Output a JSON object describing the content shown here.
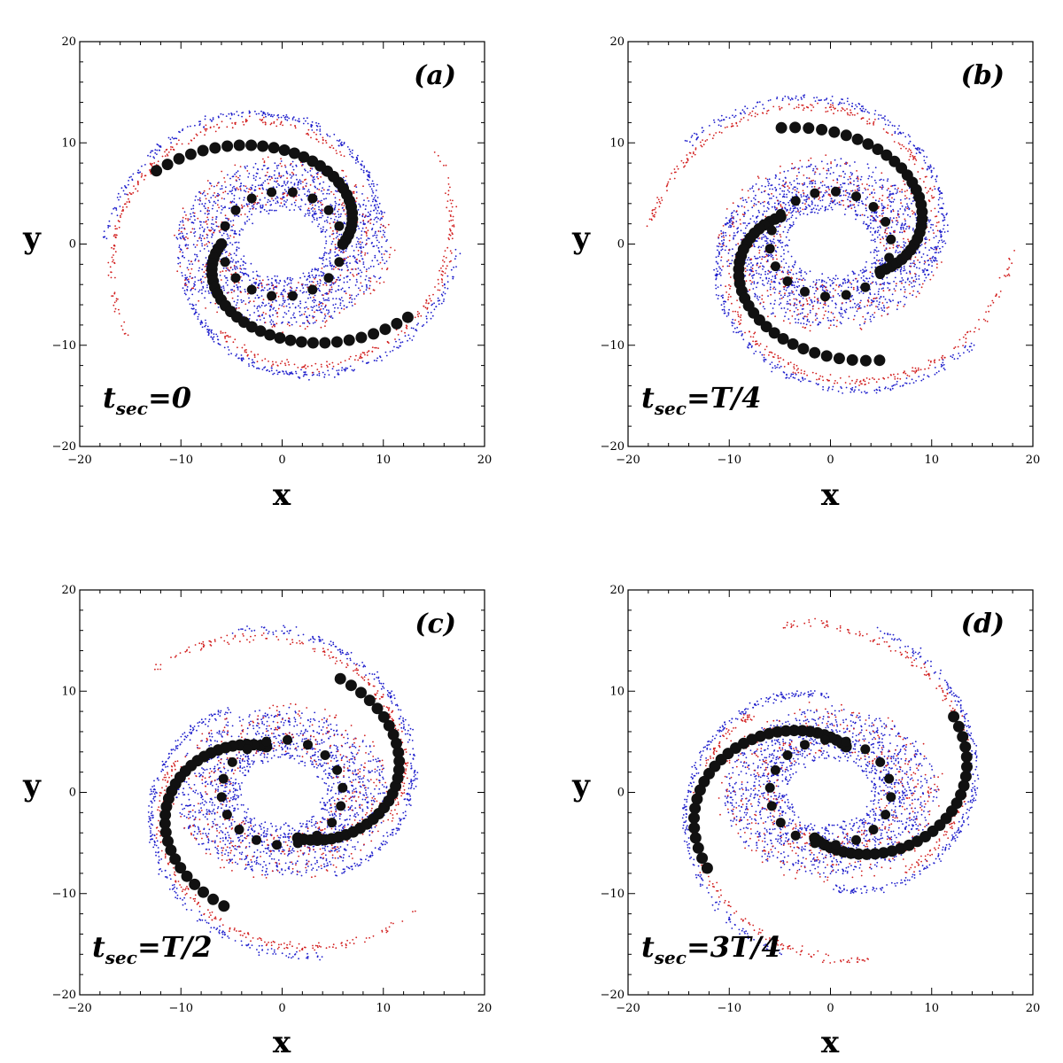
{
  "chart_data": [
    {
      "type": "scatter",
      "panel_label": "(a)",
      "time_label": {
        "main": "t",
        "sub": "sec",
        "rest": "=0"
      },
      "xlabel": "x",
      "ylabel": "y",
      "xlim": [
        -20,
        20
      ],
      "ylim": [
        -20,
        20
      ],
      "xticks": [
        -20,
        -10,
        0,
        10,
        20
      ],
      "yticks": [
        -20,
        -10,
        0,
        10,
        20
      ],
      "tick_labels": [
        "-20",
        "-10",
        "0",
        "10",
        "20"
      ],
      "rotation_deg": 0,
      "series": [
        {
          "color": "#1f1fcc",
          "marker": "dot"
        },
        {
          "color": "#d21f1f",
          "marker": "dot"
        },
        {
          "color": "#111111",
          "marker": "large-circle"
        }
      ]
    },
    {
      "type": "scatter",
      "panel_label": "(b)",
      "time_label": {
        "main": "t",
        "sub": "sec",
        "rest": "=T/4"
      },
      "xlabel": "x",
      "ylabel": "y",
      "xlim": [
        -20,
        20
      ],
      "ylim": [
        -20,
        20
      ],
      "xticks": [
        -20,
        -10,
        0,
        10,
        20
      ],
      "yticks": [
        -20,
        -10,
        0,
        10,
        20
      ],
      "tick_labels": [
        "-20",
        "-10",
        "0",
        "10",
        "20"
      ],
      "rotation_deg": -35,
      "series": [
        {
          "color": "#1f1fcc",
          "marker": "dot"
        },
        {
          "color": "#d21f1f",
          "marker": "dot"
        },
        {
          "color": "#111111",
          "marker": "large-circle"
        }
      ]
    },
    {
      "type": "scatter",
      "panel_label": "(c)",
      "time_label": {
        "main": "t",
        "sub": "sec",
        "rest": "=T/2"
      },
      "xlabel": "x",
      "ylabel": "y",
      "xlim": [
        -20,
        20
      ],
      "ylim": [
        -20,
        20
      ],
      "xticks": [
        -20,
        -10,
        0,
        10,
        20
      ],
      "yticks": [
        -20,
        -10,
        0,
        10,
        20
      ],
      "tick_labels": [
        "-20",
        "-10",
        "0",
        "10",
        "20"
      ],
      "rotation_deg": -75,
      "series": [
        {
          "color": "#1f1fcc",
          "marker": "dot"
        },
        {
          "color": "#d21f1f",
          "marker": "dot"
        },
        {
          "color": "#111111",
          "marker": "large-circle"
        }
      ]
    },
    {
      "type": "scatter",
      "panel_label": "(d)",
      "time_label": {
        "main": "t",
        "sub": "sec",
        "rest": "=3T/4"
      },
      "xlabel": "x",
      "ylabel": "y",
      "xlim": [
        -20,
        20
      ],
      "ylim": [
        -20,
        20
      ],
      "xticks": [
        -20,
        -10,
        0,
        10,
        20
      ],
      "yticks": [
        -20,
        -10,
        0,
        10,
        20
      ],
      "tick_labels": [
        "-20",
        "-10",
        "0",
        "10",
        "20"
      ],
      "rotation_deg": -105,
      "series": [
        {
          "color": "#1f1fcc",
          "marker": "dot"
        },
        {
          "color": "#d21f1f",
          "marker": "dot"
        },
        {
          "color": "#111111",
          "marker": "large-circle"
        }
      ]
    }
  ]
}
